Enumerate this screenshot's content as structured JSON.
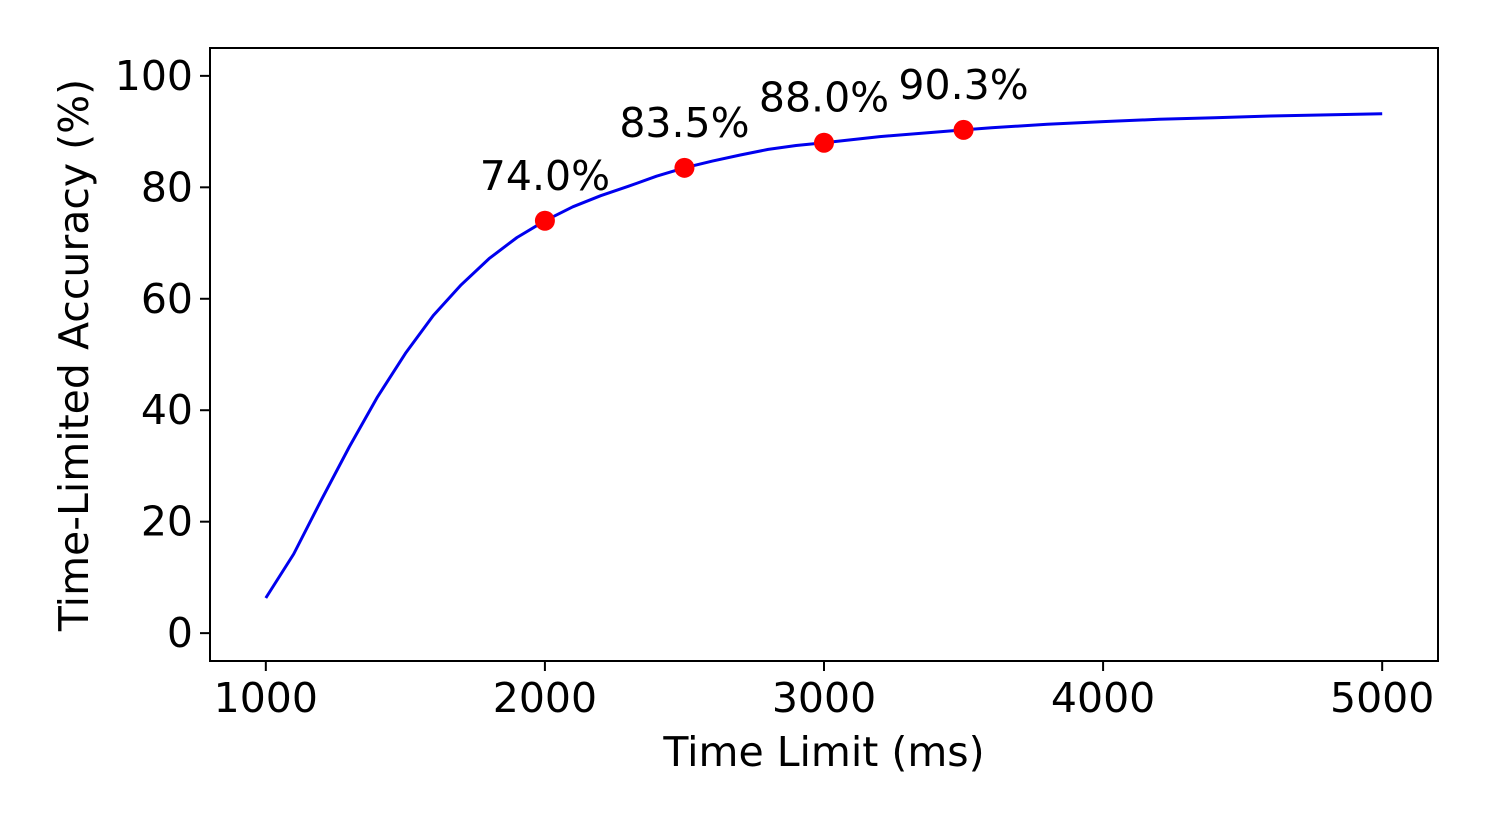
{
  "chart_data": {
    "type": "line",
    "xlabel": "Time Limit (ms)",
    "ylabel": "Time-Limited Accuracy (%)",
    "xlim": [
      800,
      5200
    ],
    "ylim": [
      -5,
      105
    ],
    "xticks": [
      1000,
      2000,
      3000,
      4000,
      5000
    ],
    "yticks": [
      0,
      20,
      40,
      60,
      80,
      100
    ],
    "grid": false,
    "line_color": "#0000ee",
    "marker_color": "#ff0000",
    "series": [
      {
        "x": [
          1000,
          1100,
          1200,
          1300,
          1400,
          1500,
          1600,
          1700,
          1800,
          1900,
          2000,
          2100,
          2200,
          2300,
          2400,
          2500,
          2600,
          2700,
          2800,
          2900,
          3000,
          3200,
          3400,
          3500,
          3600,
          3800,
          4000,
          4200,
          4400,
          4600,
          4800,
          5000
        ],
        "values": [
          6.3,
          14.2,
          24,
          33.5,
          42.4,
          50.2,
          57,
          62.5,
          67.2,
          71,
          74,
          76.5,
          78.5,
          80.2,
          82,
          83.5,
          84.7,
          85.8,
          86.8,
          87.5,
          88,
          89.1,
          89.9,
          90.3,
          90.7,
          91.3,
          91.8,
          92.2,
          92.5,
          92.8,
          93,
          93.2
        ]
      }
    ],
    "highlights": [
      {
        "x": 2000,
        "y": 74.0,
        "label": "74.0%"
      },
      {
        "x": 2500,
        "y": 83.5,
        "label": "83.5%"
      },
      {
        "x": 3000,
        "y": 88.0,
        "label": "88.0%"
      },
      {
        "x": 3500,
        "y": 90.3,
        "label": "90.3%"
      }
    ]
  }
}
